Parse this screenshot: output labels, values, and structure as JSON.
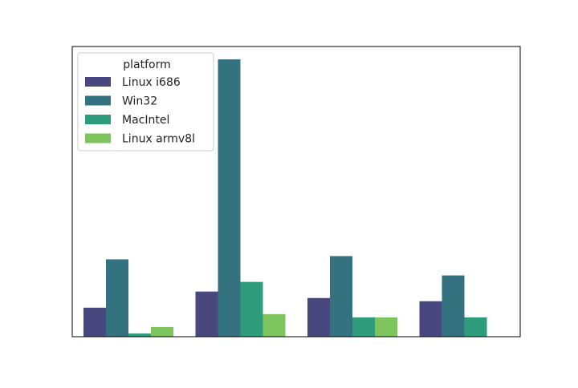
{
  "chart_data": {
    "type": "bar",
    "categories": [
      "",
      "",
      "",
      ""
    ],
    "series": [
      {
        "name": "Linux i686",
        "color": "#48487e",
        "values": [
          9,
          14,
          12,
          11
        ]
      },
      {
        "name": "Win32",
        "color": "#357280",
        "values": [
          24,
          86,
          25,
          19
        ]
      },
      {
        "name": "MacIntel",
        "color": "#2e9b7b",
        "values": [
          1,
          17,
          6,
          6
        ]
      },
      {
        "name": "Linux armv8l",
        "color": "#7ec45f",
        "values": [
          3,
          7,
          6,
          0
        ]
      }
    ],
    "legend": {
      "title": "platform",
      "placement": "upper-left"
    },
    "ylim": [
      0,
      90
    ],
    "grid": false
  }
}
